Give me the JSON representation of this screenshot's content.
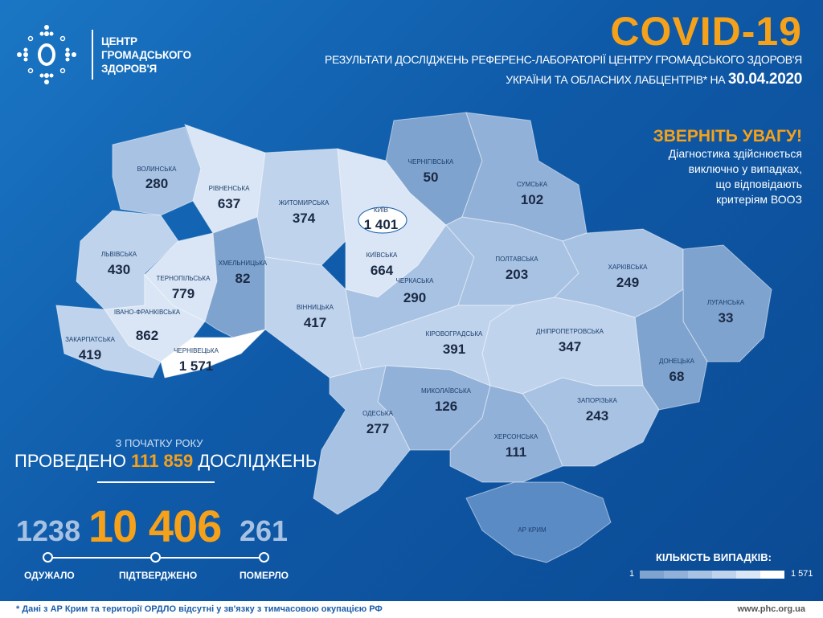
{
  "logo": {
    "line1": "ЦЕНТР",
    "line2": "ГРОМАДСЬКОГО",
    "line3": "ЗДОРОВ'Я"
  },
  "header": {
    "title": "COVID-19",
    "subtitle_line1": "РЕЗУЛЬТАТИ ДОСЛІДЖЕНЬ РЕФЕРЕНС-ЛАБОРАТОРІЇ ЦЕНТРУ ГРОМАДСЬКОГО ЗДОРОВ'Я",
    "subtitle_line2": "УКРАЇНИ ТА ОБЛАСНИХ ЛАБЦЕНТРІВ* НА ",
    "date": "30.04.2020"
  },
  "notice": {
    "heading": "ЗВЕРНІТЬ УВАГУ!",
    "lines": [
      "Діагностика здійснюється",
      "виключно у випадках,",
      "що відповідають",
      "критеріям ВООЗ"
    ]
  },
  "tests": {
    "small": "З ПОЧАТКУ РОКУ",
    "prefix": "ПРОВЕДЕНО ",
    "count": "111 859",
    "suffix": " ДОСЛІДЖЕНЬ"
  },
  "stats": {
    "recovered": "1238",
    "recovered_label": "ОДУЖАЛО",
    "confirmed": "10 406",
    "confirmed_label": "ПІДТВЕРДЖЕНО",
    "deaths": "261",
    "deaths_label": "ПОМЕРЛО"
  },
  "legend": {
    "title": "КІЛЬКІСТЬ ВИПАДКІВ:",
    "min": "1",
    "max": "1 571",
    "colors": [
      "#7fa3cf",
      "#92b1d9",
      "#a8c2e3",
      "#bfd3ec",
      "#dae6f5",
      "#ffffff"
    ]
  },
  "colors": {
    "accent": "#f6a11a",
    "background": "#0f5aa8"
  },
  "regions": [
    {
      "id": "volyn",
      "name": "ВОЛИНСЬКА",
      "cases": "280"
    },
    {
      "id": "rivne",
      "name": "РІВНЕНСЬКА",
      "cases": "637"
    },
    {
      "id": "zhytomyr",
      "name": "ЖИТОМИРСЬКА",
      "cases": "374"
    },
    {
      "id": "kyivobl",
      "name": "КИЇВСЬКА",
      "cases": "664"
    },
    {
      "id": "kyiv",
      "name": "КИЇВ",
      "cases": "1 401"
    },
    {
      "id": "chernihiv",
      "name": "ЧЕРНІГІВСЬКА",
      "cases": "50"
    },
    {
      "id": "sumy",
      "name": "СУМСЬКА",
      "cases": "102"
    },
    {
      "id": "lviv",
      "name": "ЛЬВІВСЬКА",
      "cases": "430"
    },
    {
      "id": "ternopil",
      "name": "ТЕРНОПІЛЬСЬКА",
      "cases": "779"
    },
    {
      "id": "khmelnytskyi",
      "name": "ХМЕЛЬНИЦЬКА",
      "cases": "82"
    },
    {
      "id": "vinnytsia",
      "name": "ВІННИЦЬКА",
      "cases": "417"
    },
    {
      "id": "ivano",
      "name": "ІВАНО-ФРАНКІВСЬКА",
      "cases": "862"
    },
    {
      "id": "zakarpattia",
      "name": "ЗАКАРПАТСЬКА",
      "cases": "419"
    },
    {
      "id": "chernivtsi",
      "name": "ЧЕРНІВЕЦЬКА",
      "cases": "1 571"
    },
    {
      "id": "cherkasy",
      "name": "ЧЕРКАСЬКА",
      "cases": "290"
    },
    {
      "id": "poltava",
      "name": "ПОЛТАВСЬКА",
      "cases": "203"
    },
    {
      "id": "kharkiv",
      "name": "ХАРКІВСЬКА",
      "cases": "249"
    },
    {
      "id": "luhansk",
      "name": "ЛУГАНСЬКА",
      "cases": "33"
    },
    {
      "id": "donetsk",
      "name": "ДОНЕЦЬКА",
      "cases": "68"
    },
    {
      "id": "dnipro",
      "name": "ДНІПРОПЕТРОВСЬКА",
      "cases": "347"
    },
    {
      "id": "kirovohrad",
      "name": "КІРОВОГРАДСЬКА",
      "cases": "391"
    },
    {
      "id": "mykolaiv",
      "name": "МИКОЛАЇВСЬКА",
      "cases": "126"
    },
    {
      "id": "odesa",
      "name": "ОДЕСЬКА",
      "cases": "277"
    },
    {
      "id": "zaporizhzhia",
      "name": "ЗАПОРІЗЬКА",
      "cases": "243"
    },
    {
      "id": "kherson",
      "name": "ХЕРСОНСЬКА",
      "cases": "111"
    },
    {
      "id": "crimea",
      "name": "АР КРИМ",
      "cases": ""
    }
  ],
  "footer": {
    "note": "* Дані з АР Крим та території ОРДЛО відсутні у зв'язку з тимчасовою окупацією РФ",
    "url": "www.phc.org.ua"
  }
}
